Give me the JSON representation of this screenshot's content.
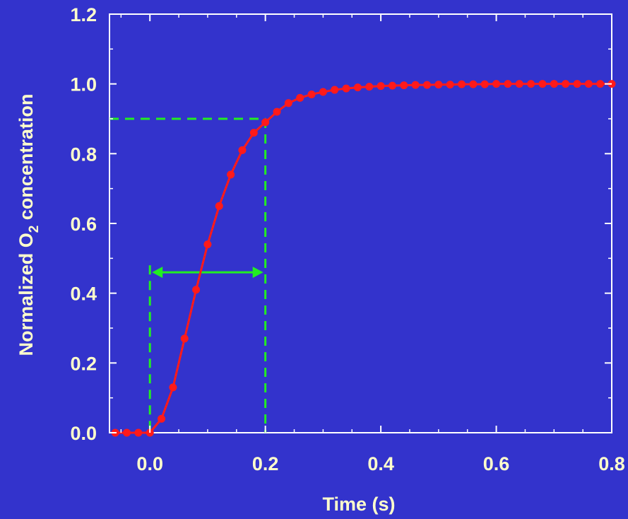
{
  "chart_data": {
    "type": "line",
    "xlabel": "Time  (s)",
    "ylabel_parts": {
      "prefix": "Normalized O",
      "subscript": "2",
      "suffix": " concentration"
    },
    "xlim": [
      -0.07,
      0.8
    ],
    "ylim": [
      0.0,
      1.2
    ],
    "x_ticks": [
      0.0,
      0.2,
      0.4,
      0.6,
      0.8
    ],
    "x_tick_labels": [
      "0.0",
      "0.2",
      "0.4",
      "0.6",
      "0.8"
    ],
    "y_ticks": [
      0.0,
      0.2,
      0.4,
      0.6,
      0.8,
      1.0,
      1.2
    ],
    "y_tick_labels": [
      "0.0",
      "0.2",
      "0.4",
      "0.6",
      "0.8",
      "1.0",
      "1.2"
    ],
    "grid": false,
    "series": [
      {
        "color": "#ff1a1a",
        "x": [
          -0.06,
          -0.04,
          -0.02,
          0.0,
          0.02,
          0.04,
          0.06,
          0.08,
          0.1,
          0.12,
          0.14,
          0.16,
          0.18,
          0.2,
          0.22,
          0.24,
          0.26,
          0.28,
          0.3,
          0.32,
          0.34,
          0.36,
          0.38,
          0.4,
          0.42,
          0.44,
          0.46,
          0.48,
          0.5,
          0.52,
          0.54,
          0.56,
          0.58,
          0.6,
          0.62,
          0.64,
          0.66,
          0.68,
          0.7,
          0.72,
          0.74,
          0.76,
          0.78,
          0.8
        ],
        "y": [
          0.0,
          0.0,
          0.0,
          0.0,
          0.04,
          0.13,
          0.27,
          0.41,
          0.54,
          0.65,
          0.74,
          0.81,
          0.86,
          0.89,
          0.92,
          0.945,
          0.96,
          0.97,
          0.977,
          0.983,
          0.987,
          0.99,
          0.992,
          0.994,
          0.995,
          0.996,
          0.997,
          0.997,
          0.998,
          0.998,
          0.999,
          0.999,
          0.999,
          1.0,
          1.0,
          1.0,
          1.0,
          1.0,
          1.0,
          1.0,
          1.0,
          1.0,
          1.0,
          1.0
        ]
      }
    ],
    "annotations": {
      "color": "#22ee22",
      "ninety_percent_level": 0.9,
      "rise_start_time": 0.0,
      "rise_end_time": 0.2,
      "rise_start_line_top": 0.48,
      "arrow_level": 0.46
    }
  }
}
